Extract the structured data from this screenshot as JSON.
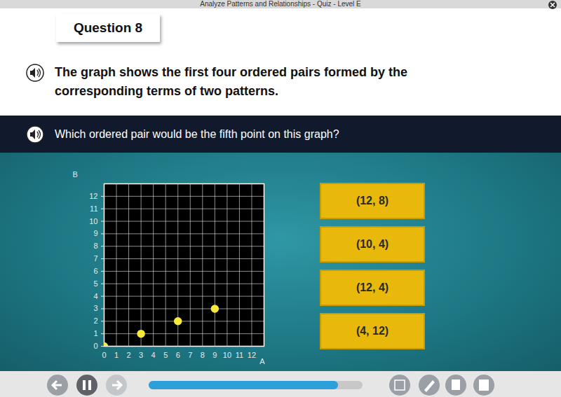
{
  "header": {
    "title": "Analyze Patterns and Relationships - Quiz - Level E"
  },
  "question": {
    "number": "Question 8",
    "prompt": "The graph shows the first four ordered pairs formed by the corresponding terms of two patterns.",
    "ask": "Which ordered pair would be the fifth point on this graph?"
  },
  "choices": [
    "(12, 8)",
    "(10, 4)",
    "(12, 4)",
    "(4, 12)"
  ],
  "chart_data": {
    "type": "scatter",
    "x_label": "A",
    "y_label": "B",
    "x": [
      0,
      3,
      6,
      9
    ],
    "values": [
      0,
      1,
      2,
      3
    ],
    "color": "#f7ea3c",
    "xlim": [
      0,
      13
    ],
    "ylim": [
      0,
      13
    ],
    "xticks": [
      0,
      1,
      2,
      3,
      4,
      5,
      6,
      7,
      8,
      9,
      10,
      11,
      12
    ],
    "yticks": [
      0,
      1,
      2,
      3,
      4,
      5,
      6,
      7,
      8,
      9,
      10,
      11,
      12
    ],
    "grid": true
  }
}
